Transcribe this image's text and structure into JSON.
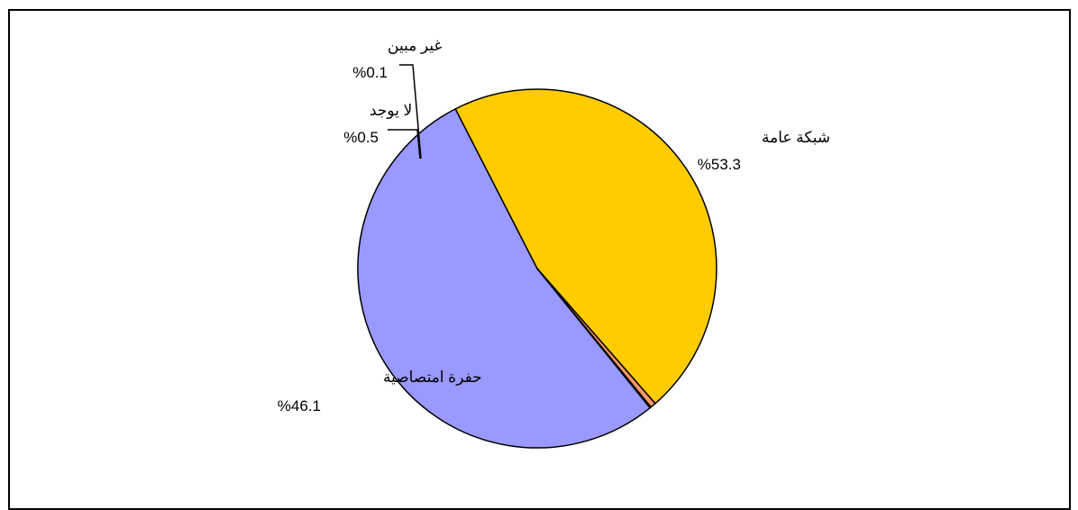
{
  "chart_data": {
    "type": "pie",
    "title": "",
    "slices": [
      {
        "label": "شبكة عامة",
        "value": 53.3,
        "value_label": "%53.3",
        "color": "#9999FF"
      },
      {
        "label": "حفرة امتصاصية",
        "value": 46.1,
        "value_label": "%46.1",
        "color": "#FFCC00"
      },
      {
        "label": "لا يوجد",
        "value": 0.5,
        "value_label": "%0.5",
        "color": "#FF9966"
      },
      {
        "label": "غير مبين",
        "value": 0.1,
        "value_label": "%0.1",
        "color": "#CCFFFF"
      }
    ],
    "legend": "none",
    "start_direction": "clockwise"
  }
}
